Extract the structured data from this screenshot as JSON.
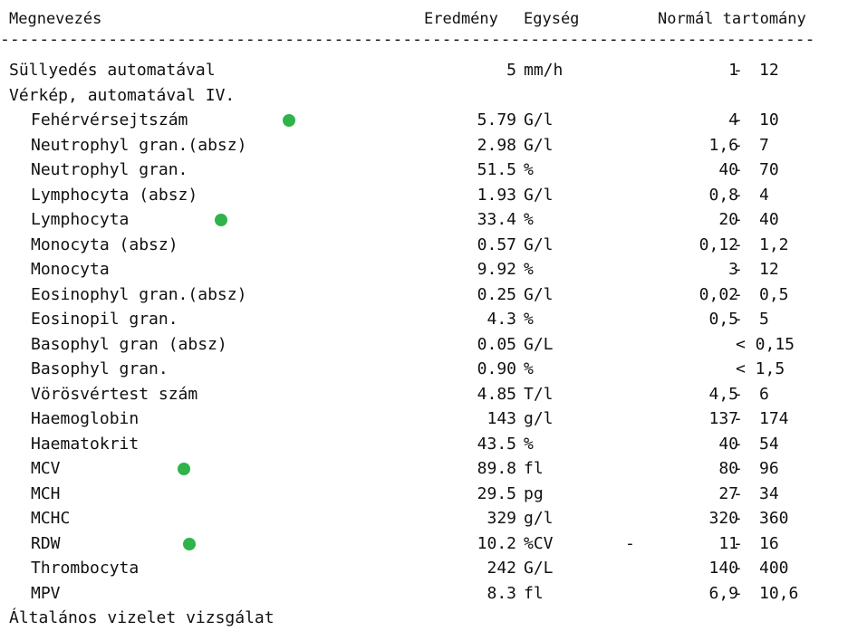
{
  "header": {
    "name": "Megnevezés",
    "result": "Eredmény",
    "unit": "Egység",
    "range": "Normál tartomány"
  },
  "divider": "-----------------------------------------------------------------------------------",
  "colors": {
    "marker": "#2fb34a"
  },
  "rows": [
    {
      "name": "Süllyedés automatával",
      "section": true,
      "result": "5",
      "unit": "mm/h",
      "flag": "",
      "low": "1",
      "high": "12",
      "range": "",
      "marker": false
    },
    {
      "name": "Vérkép, automatával IV.",
      "section": true,
      "result": "",
      "unit": "",
      "flag": "",
      "low": "",
      "high": "",
      "range": "",
      "marker": false
    },
    {
      "name": "Fehérvérsejtszám",
      "section": false,
      "result": "5.79",
      "unit": "G/l",
      "flag": "",
      "low": "4",
      "high": "10",
      "range": "",
      "marker": true
    },
    {
      "name": "Neutrophyl gran.(absz)",
      "section": false,
      "result": "2.98",
      "unit": "G/l",
      "flag": "",
      "low": "1,6",
      "high": "7",
      "range": "",
      "marker": false
    },
    {
      "name": "Neutrophyl gran.",
      "section": false,
      "result": "51.5",
      "unit": "%",
      "flag": "",
      "low": "40",
      "high": "70",
      "range": "",
      "marker": false
    },
    {
      "name": "Lymphocyta (absz)",
      "section": false,
      "result": "1.93",
      "unit": "G/l",
      "flag": "",
      "low": "0,8",
      "high": "4",
      "range": "",
      "marker": false
    },
    {
      "name": "Lymphocyta",
      "section": false,
      "result": "33.4",
      "unit": "%",
      "flag": "",
      "low": "20",
      "high": "40",
      "range": "",
      "marker": true
    },
    {
      "name": "Monocyta (absz)",
      "section": false,
      "result": "0.57",
      "unit": "G/l",
      "flag": "",
      "low": "0,12",
      "high": "1,2",
      "range": "",
      "marker": false
    },
    {
      "name": "Monocyta",
      "section": false,
      "result": "9.92",
      "unit": "%",
      "flag": "",
      "low": "3",
      "high": "12",
      "range": "",
      "marker": false
    },
    {
      "name": "Eosinophyl gran.(absz)",
      "section": false,
      "result": "0.25",
      "unit": "G/l",
      "flag": "",
      "low": "0,02",
      "high": "0,5",
      "range": "",
      "marker": false
    },
    {
      "name": "Eosinopil gran.",
      "section": false,
      "result": "4.3",
      "unit": "%",
      "flag": "",
      "low": "0,5",
      "high": "5",
      "range": "",
      "marker": false
    },
    {
      "name": "Basophyl gran (absz)",
      "section": false,
      "result": "0.05",
      "unit": "G/L",
      "flag": "",
      "low": "",
      "high": "",
      "range": "< 0,15",
      "marker": false
    },
    {
      "name": "Basophyl gran.",
      "section": false,
      "result": "0.90",
      "unit": "%",
      "flag": "",
      "low": "",
      "high": "",
      "range": "< 1,5",
      "marker": false
    },
    {
      "name": "Vörösvértest szám",
      "section": false,
      "result": "4.85",
      "unit": "T/l",
      "flag": "",
      "low": "4,5",
      "high": "6",
      "range": "",
      "marker": false
    },
    {
      "name": "Haemoglobin",
      "section": false,
      "result": "143",
      "unit": "g/l",
      "flag": "",
      "low": "137",
      "high": "174",
      "range": "",
      "marker": false
    },
    {
      "name": "Haematokrit",
      "section": false,
      "result": "43.5",
      "unit": "%",
      "flag": "",
      "low": "40",
      "high": "54",
      "range": "",
      "marker": false
    },
    {
      "name": "MCV",
      "section": false,
      "result": "89.8",
      "unit": "fl",
      "flag": "",
      "low": "80",
      "high": "96",
      "range": "",
      "marker": true
    },
    {
      "name": "MCH",
      "section": false,
      "result": "29.5",
      "unit": "pg",
      "flag": "",
      "low": "27",
      "high": "34",
      "range": "",
      "marker": false
    },
    {
      "name": "MCHC",
      "section": false,
      "result": "329",
      "unit": "g/l",
      "flag": "",
      "low": "320",
      "high": "360",
      "range": "",
      "marker": false
    },
    {
      "name": "RDW",
      "section": false,
      "result": "10.2",
      "unit": "%CV",
      "flag": "-",
      "low": "11",
      "high": "16",
      "range": "",
      "marker": true
    },
    {
      "name": "Thrombocyta",
      "section": false,
      "result": "242",
      "unit": "G/L",
      "flag": "",
      "low": "140",
      "high": "400",
      "range": "",
      "marker": false
    },
    {
      "name": "MPV",
      "section": false,
      "result": "8.3",
      "unit": "fl",
      "flag": "",
      "low": "6,9",
      "high": "10,6",
      "range": "",
      "marker": false
    },
    {
      "name": "Általános vizelet vizsgálat",
      "section": true,
      "result": "",
      "unit": "",
      "flag": "",
      "low": "",
      "high": "",
      "range": "",
      "marker": false
    }
  ]
}
